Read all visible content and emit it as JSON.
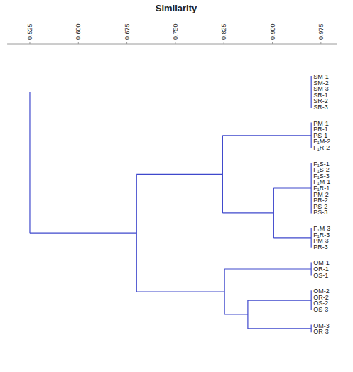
{
  "chart_data": {
    "type": "dendrogram",
    "x_label": "Similarity",
    "color": "#3f48cc",
    "xlim": [
      0.49,
      1.0
    ],
    "xticks": [
      0.525,
      {
        "value": 0.6,
        "label": "0.600"
      },
      0.675,
      {
        "value": 0.75,
        "label": "0.750"
      },
      0.825,
      {
        "value": 0.9,
        "label": "0.900"
      },
      0.975
    ],
    "tree": {
      "value": 0.525,
      "children": [
        {
          "value": 0.96,
          "leaves": [
            "SM-1",
            "SM-2",
            "SM-3",
            "SR-1",
            "SR-2",
            "SR-3"
          ]
        },
        {
          "value": 0.69,
          "children": [
            {
              "value": 0.823,
              "children": [
                {
                  "value": 0.96,
                  "leaves": [
                    "PM-1",
                    "PR-1",
                    "PS-1",
                    "F₁M-2",
                    "F₁R-2"
                  ]
                },
                {
                  "value": 0.902,
                  "children": [
                    {
                      "value": 0.96,
                      "leaves": [
                        "F₁S-1",
                        "F₁S-2",
                        "F₁S-3",
                        "F₁M-1",
                        "F₁R-1",
                        "PM-2",
                        "PR-2",
                        "PS-2",
                        "PS-3"
                      ]
                    },
                    {
                      "value": 0.96,
                      "leaves": [
                        "F₁M-3",
                        "F₁R-3",
                        "PM-3",
                        "PR-3"
                      ]
                    }
                  ]
                }
              ]
            },
            {
              "value": 0.826,
              "children": [
                {
                  "value": 0.96,
                  "leaves": [
                    "OM-1",
                    "OR-1",
                    "OS-1"
                  ]
                },
                {
                  "value": 0.862,
                  "children": [
                    {
                      "value": 0.96,
                      "leaves": [
                        "OM-2",
                        "OR-2",
                        "OS-2",
                        "OS-3"
                      ]
                    },
                    {
                      "value": 0.96,
                      "leaves": [
                        "OM-3",
                        "OR-3"
                      ]
                    }
                  ]
                }
              ]
            }
          ]
        }
      ]
    }
  }
}
